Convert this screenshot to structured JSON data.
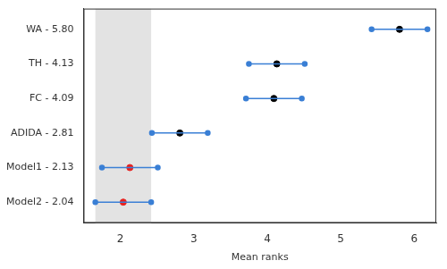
{
  "chart_data": {
    "type": "interval",
    "x_label": "Mean ranks",
    "categories": [
      "WA - 5.80",
      "TH - 4.13",
      "FC - 4.09",
      "ADIDA - 2.81",
      "Model1 - 2.13",
      "Model2 - 2.04"
    ],
    "values": [
      5.8,
      4.13,
      4.09,
      2.81,
      2.13,
      2.04
    ],
    "lower": [
      5.42,
      3.75,
      3.71,
      2.43,
      1.75,
      1.66
    ],
    "upper": [
      6.18,
      4.51,
      4.47,
      3.19,
      2.51,
      2.42
    ],
    "colors": [
      "#000000",
      "#000000",
      "#000000",
      "#000000",
      "#e8211f",
      "#e8211f"
    ],
    "color": "#3a7fd5",
    "highlight_range": [
      1.66,
      2.42
    ],
    "xlim": [
      1.5,
      6.3
    ],
    "xticks": [
      2,
      3,
      4,
      5,
      6
    ],
    "grid": false,
    "marker": "circle"
  }
}
